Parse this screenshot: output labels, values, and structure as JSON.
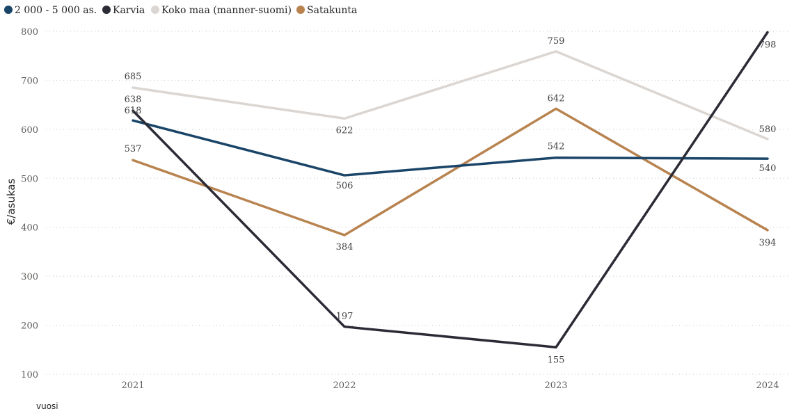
{
  "chart_data": {
    "type": "line",
    "title": "",
    "xlabel": "vuosi",
    "ylabel": "€/asukas",
    "categories": [
      "2021",
      "2022",
      "2023",
      "2024"
    ],
    "ylim": [
      100,
      800
    ],
    "yticks": [
      100,
      200,
      300,
      400,
      500,
      600,
      700,
      800
    ],
    "grid": true,
    "legend_position": "top-left",
    "series": [
      {
        "name": "2 000 - 5 000 as.",
        "color": "#1a4568",
        "values": [
          618,
          506,
          542,
          540
        ]
      },
      {
        "name": "Karvia",
        "color": "#2b2b36",
        "values": [
          638,
          197,
          155,
          798
        ]
      },
      {
        "name": "Koko maa (manner-suomi)",
        "color": "#dbd6d1",
        "values": [
          685,
          622,
          759,
          580
        ]
      },
      {
        "name": "Satakunta",
        "color": "#b8834f",
        "values": [
          537,
          384,
          642,
          394
        ]
      }
    ]
  }
}
